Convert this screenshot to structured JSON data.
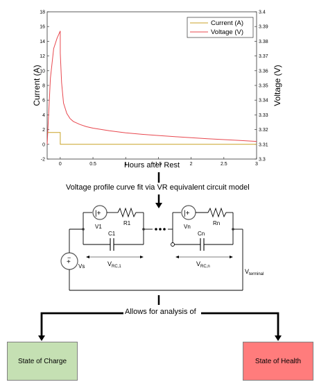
{
  "chart_data": {
    "type": "line",
    "title": "",
    "xlabel": "Hours after Rest",
    "ylabel_left": "Current (A)",
    "ylabel_right": "Voltage (V)",
    "xlim": [
      -0.2,
      3
    ],
    "ylim_left": [
      -2,
      18
    ],
    "ylim_right": [
      3.3,
      3.4
    ],
    "x_ticks": [
      "0",
      "0.5",
      "1",
      "1.5",
      "2",
      "2.5",
      "3"
    ],
    "y_ticks_left": [
      "-2",
      "0",
      "2",
      "4",
      "6",
      "8",
      "10",
      "12",
      "14",
      "16",
      "18"
    ],
    "y_ticks_right": [
      "3.3",
      "3.31",
      "3.32",
      "3.33",
      "3.34",
      "3.35",
      "3.36",
      "3.37",
      "3.38",
      "3.39",
      "3.4"
    ],
    "legend_position": "top-right",
    "series": [
      {
        "name": "Current (A)",
        "axis": "left",
        "color": "#c9a227",
        "x": [
          -0.2,
          0,
          0,
          3
        ],
        "y": [
          1.6,
          1.6,
          0,
          0
        ]
      },
      {
        "name": "Voltage (V)",
        "axis": "right",
        "color": "#e8474e",
        "x": [
          -0.2,
          -0.15,
          -0.1,
          -0.05,
          0,
          0,
          0.02,
          0.05,
          0.1,
          0.15,
          0.2,
          0.3,
          0.4,
          0.5,
          0.75,
          1,
          1.25,
          1.5,
          1.75,
          2,
          2.25,
          2.5,
          2.75,
          3
        ],
        "y": [
          3.31,
          3.355,
          3.375,
          3.382,
          3.387,
          3.372,
          3.352,
          3.338,
          3.331,
          3.3275,
          3.3255,
          3.3235,
          3.322,
          3.321,
          3.3192,
          3.3178,
          3.3168,
          3.316,
          3.3152,
          3.3145,
          3.3138,
          3.3132,
          3.3126,
          3.312
        ]
      }
    ]
  },
  "steps": {
    "fit_label": "Voltage profile curve fit via VR equivalent circuit model",
    "analysis_label": "Allows for analysis of"
  },
  "circuit": {
    "source_main": "Vs",
    "v1": "V1",
    "r1": "R1",
    "c1": "C1",
    "vn": "Vn",
    "rn": "Rn",
    "cn": "Cn",
    "vrc1": "V",
    "vrc1_sub": "RC,1",
    "vrcn": "V",
    "vrcn_sub": "RC,n",
    "vterm": "V",
    "vterm_sub": "terminal"
  },
  "outcomes": {
    "soc": "State of Charge",
    "soh": "State of Health",
    "soc_color": "#c5e0b3",
    "soh_color": "#ff7c7c"
  }
}
